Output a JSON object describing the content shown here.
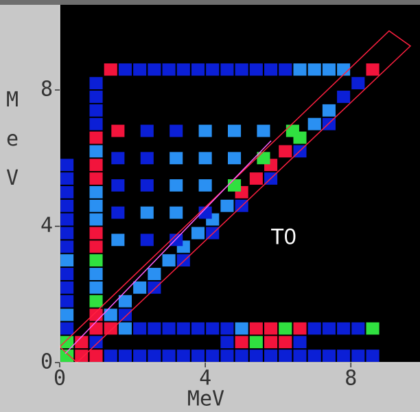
{
  "chart_data": {
    "type": "heatmap",
    "x_label": "MeV",
    "y_label": "MeV",
    "annotation": "T0",
    "xlim": [
      0,
      9.9
    ],
    "ylim": [
      0,
      10.5
    ],
    "xticks": [
      0,
      4,
      8
    ],
    "yticks": [
      0,
      4,
      8
    ],
    "colorscale": [
      "#0b1fd6",
      "#2a90f2",
      "#30e040",
      "#f2143c"
    ],
    "x": [
      0.2,
      0.6,
      1.0,
      1.4,
      1.8,
      2.2,
      2.6,
      3.0,
      3.4,
      3.8,
      4.2,
      4.6,
      5.0,
      5.4,
      5.8,
      6.2,
      6.6,
      7.0,
      7.4,
      7.8,
      8.2,
      8.6,
      1.0,
      1.8,
      2.6,
      3.4,
      4.2,
      5.0,
      5.8,
      6.6,
      7.4,
      1.0,
      1.0,
      1.0,
      1.0,
      1.0,
      1.0,
      1.0,
      1.0,
      1.0,
      1.0,
      1.0,
      1.0,
      1.0,
      1.0,
      1.0,
      1.0,
      1.0,
      1.0,
      1.4,
      1.8,
      2.2,
      2.6,
      3.0,
      3.4,
      3.8,
      4.2,
      4.6,
      5.0,
      5.4,
      5.8,
      6.2,
      6.6,
      7.0,
      7.4,
      7.8,
      1.4,
      1.8,
      2.2,
      2.6,
      3.0,
      3.4,
      3.8,
      4.2,
      4.6,
      5.0,
      5.4,
      5.8,
      6.2,
      6.6,
      7.0,
      7.4,
      7.8,
      8.2,
      8.6,
      4.6,
      5.0,
      5.4,
      5.8,
      6.2,
      6.6,
      0.2,
      0.6,
      1.0,
      1.4,
      1.8,
      2.2,
      2.6,
      3.0,
      3.4,
      3.8,
      4.2,
      4.6,
      5.0,
      5.4,
      5.8,
      6.2,
      6.6,
      7.0,
      7.4,
      7.8,
      8.2,
      8.6,
      0.2,
      0.2,
      0.2,
      0.2,
      0.2,
      0.2,
      0.2,
      0.2,
      0.2,
      0.2,
      0.2,
      0.2,
      0.2,
      0.2,
      1.6,
      2.4,
      3.2,
      1.6,
      2.4,
      3.2,
      4.0,
      1.6,
      2.4,
      3.2,
      4.0,
      4.8,
      1.6,
      2.4,
      3.2,
      4.0,
      4.8,
      5.6,
      1.6,
      2.4,
      3.2,
      4.0,
      4.8,
      5.6,
      6.4
    ],
    "y": [
      0.2,
      0.6,
      1.0,
      1.4,
      1.8,
      2.2,
      2.6,
      3.0,
      3.4,
      3.8,
      4.2,
      4.6,
      5.0,
      5.4,
      5.8,
      6.2,
      6.6,
      7.0,
      7.4,
      7.8,
      8.2,
      8.6,
      0.6,
      1.4,
      2.2,
      3.0,
      3.8,
      4.6,
      5.4,
      6.2,
      7.0,
      1.4,
      1.8,
      2.2,
      2.6,
      3.0,
      3.4,
      3.8,
      4.2,
      4.6,
      5.0,
      5.4,
      5.8,
      6.2,
      6.6,
      7.0,
      7.4,
      7.8,
      8.2,
      8.6,
      8.6,
      8.6,
      8.6,
      8.6,
      8.6,
      8.6,
      8.6,
      8.6,
      8.6,
      8.6,
      8.6,
      8.6,
      8.6,
      8.6,
      8.6,
      8.6,
      1.0,
      1.0,
      1.0,
      1.0,
      1.0,
      1.0,
      1.0,
      1.0,
      1.0,
      1.0,
      1.0,
      1.0,
      1.0,
      1.0,
      1.0,
      1.0,
      1.0,
      1.0,
      1.0,
      0.6,
      0.6,
      0.6,
      0.6,
      0.6,
      0.6,
      0.2,
      0.2,
      0.2,
      0.2,
      0.2,
      0.2,
      0.2,
      0.2,
      0.2,
      0.2,
      0.2,
      0.2,
      0.2,
      0.2,
      0.2,
      0.2,
      0.2,
      0.2,
      0.2,
      0.2,
      0.2,
      0.2,
      0.6,
      1.0,
      1.4,
      1.8,
      2.2,
      2.6,
      3.0,
      3.4,
      3.8,
      4.2,
      4.6,
      5.0,
      5.4,
      5.8,
      3.6,
      3.6,
      3.6,
      4.4,
      4.4,
      4.4,
      4.4,
      5.2,
      5.2,
      5.2,
      5.2,
      5.2,
      6.0,
      6.0,
      6.0,
      6.0,
      6.0,
      6.0,
      6.8,
      6.8,
      6.8,
      6.8,
      6.8,
      6.8,
      6.8
    ],
    "values": [
      3,
      4,
      4,
      2,
      2,
      2,
      2,
      2,
      2,
      2,
      2,
      2,
      4,
      4,
      4,
      4,
      3,
      2,
      2,
      1,
      1,
      4,
      1,
      1,
      1,
      1,
      1,
      1,
      1,
      1,
      1,
      4,
      3,
      2,
      2,
      3,
      4,
      4,
      2,
      2,
      2,
      4,
      4,
      2,
      4,
      1,
      1,
      1,
      1,
      4,
      1,
      1,
      1,
      1,
      1,
      1,
      1,
      1,
      1,
      1,
      1,
      1,
      2,
      2,
      2,
      2,
      4,
      2,
      1,
      1,
      1,
      1,
      1,
      1,
      1,
      2,
      4,
      4,
      3,
      4,
      1,
      1,
      1,
      1,
      3,
      1,
      4,
      3,
      4,
      4,
      1,
      3,
      4,
      4,
      1,
      1,
      1,
      1,
      1,
      1,
      1,
      1,
      1,
      1,
      1,
      1,
      1,
      1,
      1,
      1,
      1,
      1,
      1,
      3,
      1,
      2,
      1,
      1,
      1,
      2,
      1,
      1,
      1,
      1,
      1,
      1,
      1,
      2,
      1,
      1,
      1,
      2,
      2,
      1,
      1,
      1,
      2,
      2,
      3,
      1,
      1,
      2,
      2,
      2,
      3,
      4,
      1,
      1,
      2,
      2,
      2,
      3
    ]
  }
}
